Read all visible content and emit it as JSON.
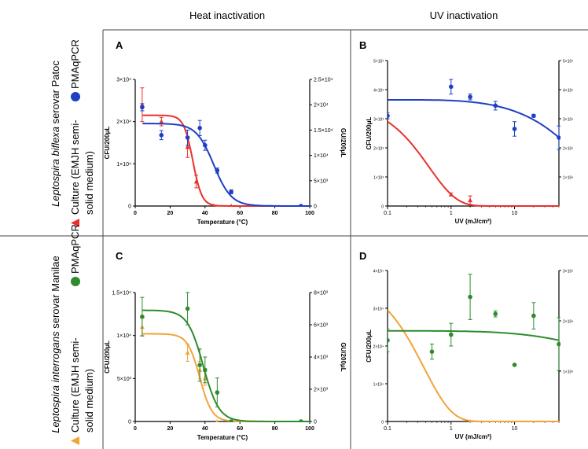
{
  "columns": {
    "heat": "Heat inactivation",
    "uv": "UV inactivation"
  },
  "rows": {
    "top": {
      "species": "Leptospira biflexa",
      "serovar_suffix": " serovar Patoc",
      "pmaqpcr": "PMAqPCR",
      "culture_line1": "Culture (EMJH semi-",
      "culture_line2": "solid medium)"
    },
    "bottom": {
      "species": "Leptospira interrogans",
      "serovar_suffix": " serovar Manilae",
      "pmaqpcr": "PMAqPCR",
      "culture_line1": "Culture (EMJH semi-",
      "culture_line2": "solid medium)"
    }
  },
  "colors": {
    "red": "#e8312a",
    "blue": "#1f3fc4",
    "green": "#2e8b2e",
    "orange": "#f2a33a"
  },
  "chart_data": [
    {
      "panel": "A",
      "type": "scatter",
      "xlabel": "Temperature (°C)",
      "ylabel": "CFU/200μL",
      "y2label": "GU/200μL",
      "xlim": [
        0,
        100
      ],
      "xticks": [
        "0",
        "20",
        "40",
        "60",
        "80",
        "100"
      ],
      "ylim": [
        0,
        30000
      ],
      "yticks": [
        "0",
        "1×10⁴",
        "2×10⁴",
        "3×10⁴"
      ],
      "y2lim": [
        0,
        25000
      ],
      "y2ticks": [
        "0",
        "5×10³",
        "1×10⁴",
        "1.5×10⁴",
        "2×10⁴",
        "2.5×10⁴"
      ],
      "series": [
        {
          "axis": "y",
          "marker": "triangle",
          "color": "red",
          "points": [
            [
              4,
              24000,
              4000
            ],
            [
              15,
              20000,
              1000
            ],
            [
              30,
              14000,
              2500
            ],
            [
              35,
              5800,
              1500
            ],
            [
              45,
              0,
              0
            ],
            [
              55,
              0,
              0
            ],
            [
              95,
              0,
              0
            ]
          ],
          "fit": {
            "top": 21500,
            "bottom": 0,
            "mid": 33,
            "slope": 2.6
          }
        },
        {
          "axis": "y2",
          "marker": "circle",
          "color": "blue",
          "points": [
            [
              4,
              19500,
              700
            ],
            [
              15,
              14000,
              900
            ],
            [
              30,
              13500,
              1500
            ],
            [
              37,
              15400,
              1500
            ],
            [
              40,
              12000,
              1000
            ],
            [
              47,
              7000,
              500
            ],
            [
              55,
              2800,
              400
            ],
            [
              95,
              0,
              0
            ]
          ],
          "fit": {
            "top": 16300,
            "bottom": 0,
            "mid": 45,
            "slope": 5
          }
        }
      ]
    },
    {
      "panel": "B",
      "type": "scatter",
      "xscale": "log",
      "xlabel": "UV (mJ/cm²)",
      "ylabel": "CFU/200μL",
      "xlim": [
        0.1,
        50
      ],
      "xticks": [
        "0.1",
        "1",
        "10"
      ],
      "ylim": [
        0,
        50000
      ],
      "yticks": [
        "0",
        "1×10³",
        "2×10³",
        "3×10³",
        "4×10³",
        "5×10³"
      ],
      "y2ticks": [
        "1×10⁴",
        "2×10⁴",
        "3×10⁴",
        "4×10⁴",
        "5×10⁴"
      ],
      "series": [
        {
          "axis": "y",
          "marker": "triangle",
          "color": "red",
          "points": [
            [
              1,
              4000,
              500
            ],
            [
              2,
              2000,
              1500
            ]
          ],
          "fit": {
            "type": "decay",
            "y0": 29000,
            "k": 1.0
          }
        },
        {
          "axis": "y",
          "marker": "circle",
          "color": "blue",
          "points": [
            [
              0.1,
              31000,
              1000
            ],
            [
              1,
              41000,
              2500
            ],
            [
              2,
              37500,
              1000
            ],
            [
              5,
              34500,
              1500
            ],
            [
              10,
              26500,
              2500
            ],
            [
              20,
              31000,
              500
            ],
            [
              50,
              23500,
              4000
            ]
          ],
          "fit": {
            "type": "flat",
            "y0": 36500,
            "y1": 23500
          }
        }
      ]
    },
    {
      "panel": "C",
      "type": "scatter",
      "xlabel": "Temperature (°C)",
      "ylabel": "CFU/200μL",
      "y2label": "GU/200μL",
      "xlim": [
        0,
        100
      ],
      "xticks": [
        "0",
        "20",
        "40",
        "60",
        "80",
        "100"
      ],
      "ylim": [
        0,
        15000
      ],
      "yticks": [
        "0",
        "5×10³",
        "1×10⁴",
        "1.5×10⁴"
      ],
      "y2lim": [
        0,
        8000
      ],
      "y2ticks": [
        "0",
        "2×10³",
        "4×10³",
        "6×10³",
        "8×10³"
      ],
      "series": [
        {
          "axis": "y",
          "marker": "triangle",
          "color": "orange",
          "points": [
            [
              4,
              11000,
              1000
            ],
            [
              30,
              8000,
              1000
            ],
            [
              37,
              6000,
              1000
            ],
            [
              40,
              5000,
              800
            ],
            [
              47,
              0,
              0
            ],
            [
              55,
              0,
              0
            ],
            [
              95,
              0,
              0
            ]
          ],
          "fit": {
            "top": 10200,
            "bottom": 0,
            "mid": 37,
            "slope": 3.5
          }
        },
        {
          "axis": "y2",
          "marker": "circle",
          "color": "green",
          "points": [
            [
              4,
              6500,
              1200
            ],
            [
              30,
              7000,
              1000
            ],
            [
              37,
              3500,
              1000
            ],
            [
              40,
              3200,
              800
            ],
            [
              47,
              1800,
              900
            ],
            [
              55,
              0,
              0
            ],
            [
              95,
              0,
              0
            ]
          ],
          "fit": {
            "top": 6900,
            "bottom": 0,
            "mid": 39,
            "slope": 4.5
          }
        }
      ]
    },
    {
      "panel": "D",
      "type": "scatter",
      "xscale": "log",
      "xlabel": "UV (mJ/cm²)",
      "ylabel": "CFU/200μL",
      "xlim": [
        0.1,
        50
      ],
      "xticks": [
        "0.1",
        "1",
        "10"
      ],
      "ylim": [
        0,
        40000
      ],
      "yticks": [
        "0",
        "1×10⁴",
        "2×10⁴",
        "3×10⁴",
        "4×10⁴"
      ],
      "y2ticks": [
        "1×10⁴",
        "2×10⁴",
        "3×10⁴"
      ],
      "series": [
        {
          "axis": "y",
          "marker": "triangle",
          "color": "orange",
          "points": [
            [
              2,
              0,
              0
            ]
          ],
          "fit": {
            "type": "decay",
            "y0": 29500,
            "k": 1.2
          }
        },
        {
          "axis": "y",
          "marker": "circle",
          "color": "green",
          "points": [
            [
              0.1,
              21500,
              3000
            ],
            [
              0.5,
              18500,
              2000
            ],
            [
              1,
              23000,
              3000
            ],
            [
              2,
              33000,
              6000
            ],
            [
              5,
              28500,
              800
            ],
            [
              10,
              15000,
              0
            ],
            [
              20,
              28000,
              3500
            ],
            [
              50,
              20500,
              7000
            ]
          ],
          "fit": {
            "type": "flat",
            "y0": 24000,
            "y1": 21500
          }
        }
      ]
    }
  ]
}
